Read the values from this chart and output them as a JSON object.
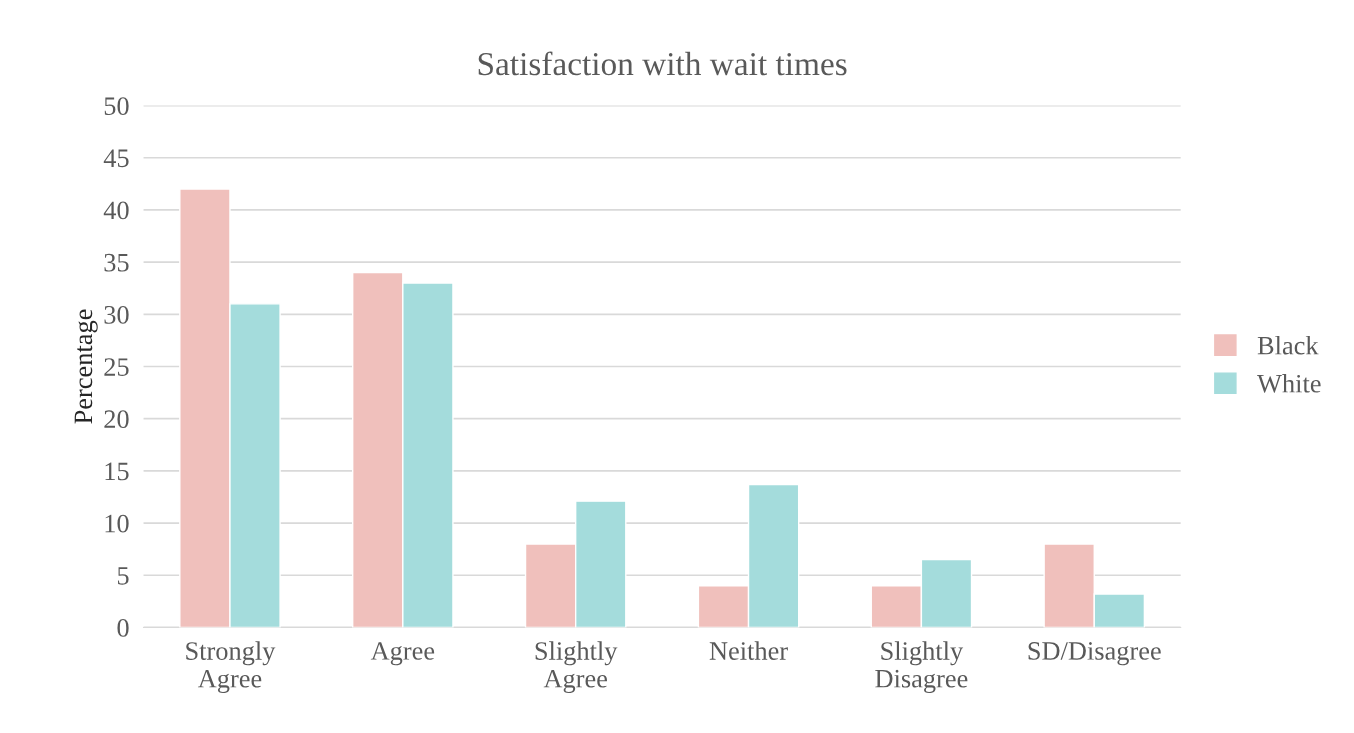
{
  "chart_data": {
    "type": "bar",
    "title": "Satisfaction with wait times",
    "ylabel": "Percentage",
    "categories": [
      "Strongly\nAgree",
      "Agree",
      "Slightly\nAgree",
      "Neither",
      "Slightly\nDisagree",
      "SD/Disagree"
    ],
    "series": [
      {
        "name": "Black",
        "color": "#f0c0bc",
        "values": [
          42,
          34,
          8,
          4,
          4,
          8
        ]
      },
      {
        "name": "White",
        "color": "#a4dcdc",
        "values": [
          31,
          33,
          12.1,
          13.7,
          6.5,
          3.2
        ]
      }
    ],
    "ylim": [
      0,
      50
    ],
    "yticks": [
      0,
      5,
      10,
      15,
      20,
      25,
      30,
      35,
      40,
      45,
      50
    ],
    "grid": "y",
    "legend": "right"
  }
}
